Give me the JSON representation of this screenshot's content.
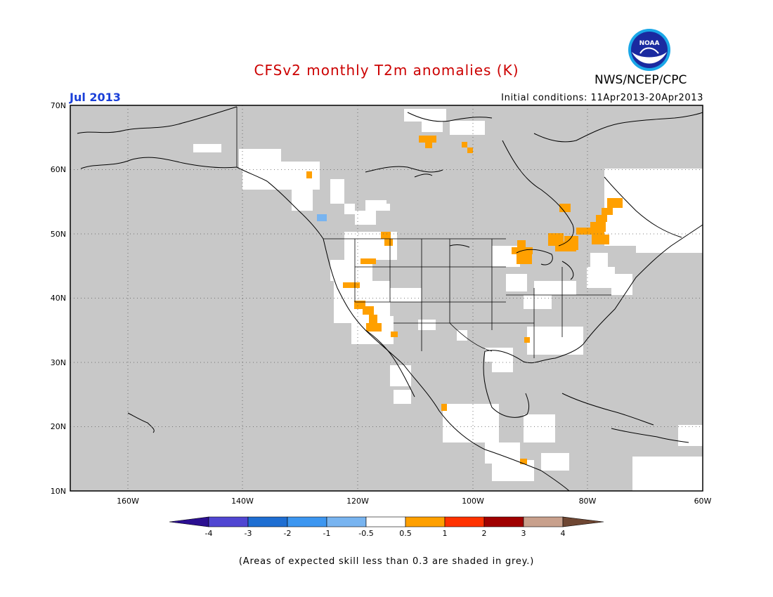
{
  "header": {
    "title": "CFSv2 monthly T2m anomalies (K)",
    "month": "Jul 2013",
    "initial_conditions": "Initial conditions: 11Apr2013-20Apr2013",
    "agency": "NWS/NCEP/CPC",
    "logo_text": "NOAA"
  },
  "colors": {
    "title": "#cc0000",
    "month": "#1a3fd8",
    "ocean_land_grey": "#c8c8c8",
    "anomaly_positive_small": "#ffa000",
    "anomaly_negative_small": "#78b4f0",
    "low_skill_white": "#ffffff"
  },
  "map": {
    "lat_labels": [
      "70N",
      "60N",
      "50N",
      "40N",
      "30N",
      "20N",
      "10N"
    ],
    "lon_labels": [
      "160W",
      "140W",
      "120W",
      "100W",
      "80W",
      "60W"
    ]
  },
  "colorbar": {
    "labels": [
      "-4",
      "-3",
      "-2",
      "-1",
      "-0.5",
      "0.5",
      "1",
      "2",
      "3",
      "4"
    ],
    "colors": [
      "#2b0f91",
      "#5046d2",
      "#1e6ed2",
      "#3c96f0",
      "#78b4f0",
      "#ffffff",
      "#ffa000",
      "#ff3200",
      "#a00000",
      "#c8a08c",
      "#6e4632"
    ]
  },
  "footnote": "(Areas of expected skill less than 0.3 are shaded in grey.)"
}
